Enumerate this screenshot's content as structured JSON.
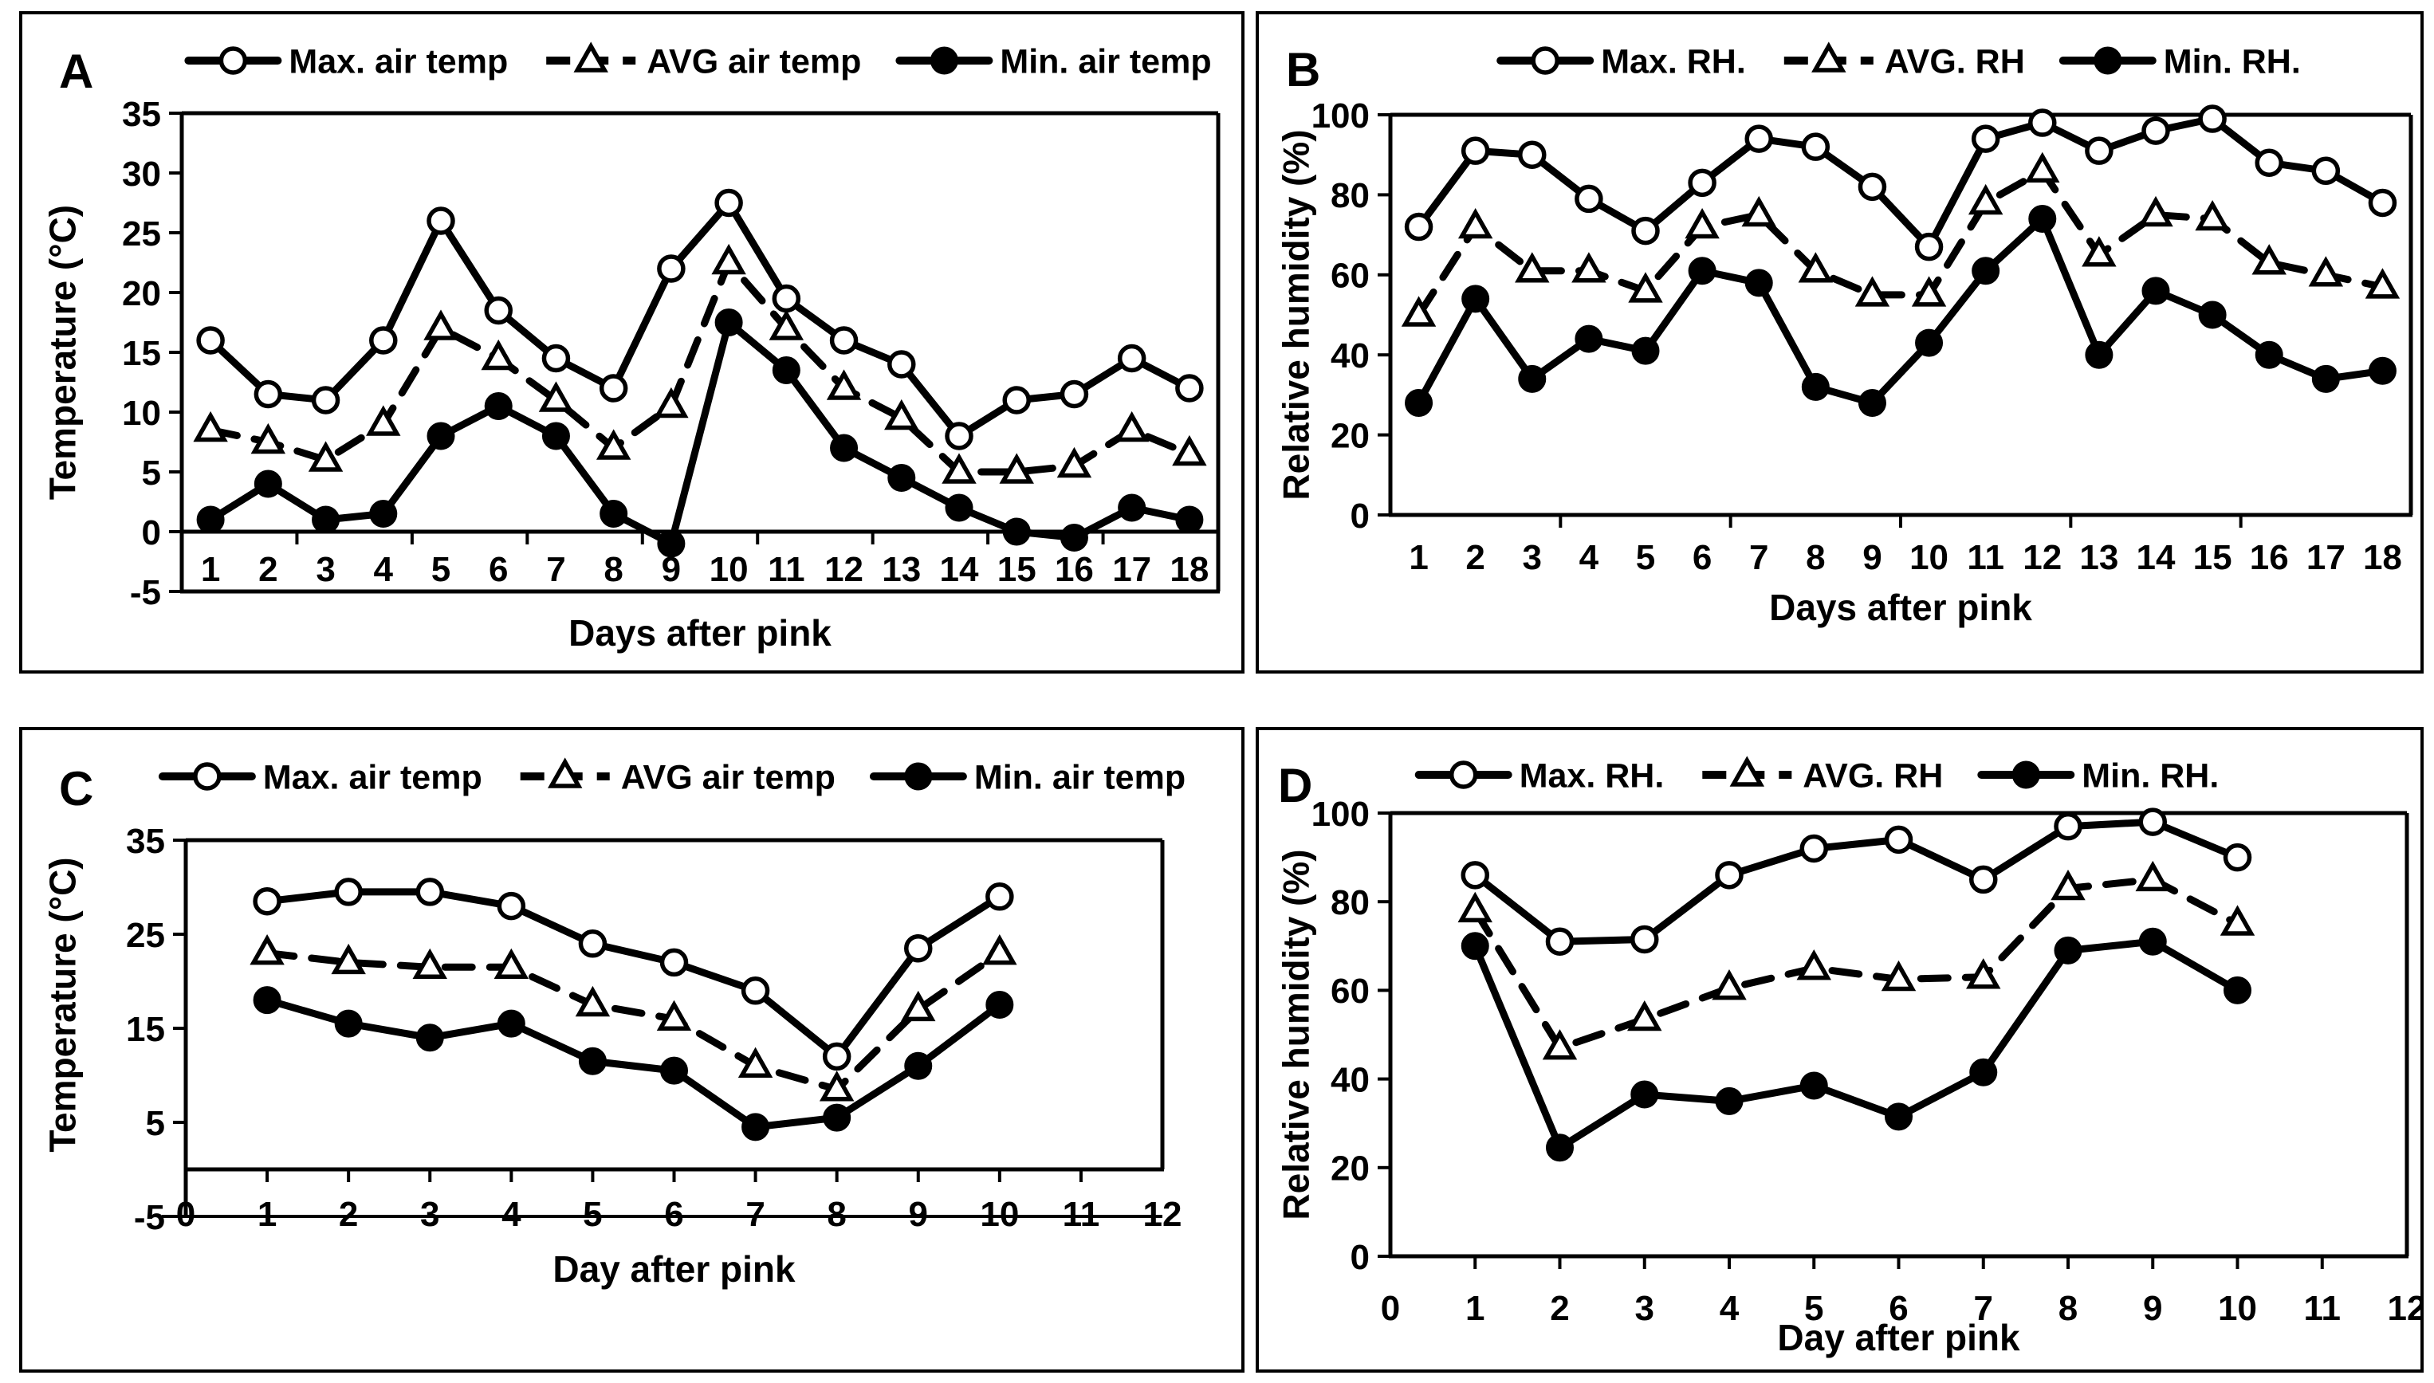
{
  "figure": {
    "background": "#ffffff",
    "ink_color": "#000000",
    "panel_labels": [
      "A",
      "B",
      "C",
      "D"
    ]
  },
  "chart_data": [
    {
      "panel_label": "A",
      "type": "line",
      "title": "",
      "xlabel": "Days after pink",
      "ylabel": "Temperature (°C)",
      "x_type": "category",
      "x": [
        1,
        2,
        3,
        4,
        5,
        6,
        7,
        8,
        9,
        10,
        11,
        12,
        13,
        14,
        15,
        16,
        17,
        18
      ],
      "xticks": [
        1,
        2,
        3,
        4,
        5,
        6,
        7,
        8,
        9,
        10,
        11,
        12,
        13,
        14,
        15,
        16,
        17,
        18
      ],
      "ylim": [
        -5,
        35
      ],
      "yticks": [
        35,
        30,
        25,
        20,
        15,
        10,
        5,
        0,
        -5
      ],
      "x_axis_cross": 0,
      "grid": false,
      "legend_position": "top",
      "series": [
        {
          "name": "Max. air temp",
          "marker": "open-circle",
          "line": "solid",
          "values": [
            16,
            11.5,
            11,
            16,
            26,
            18.5,
            14.5,
            12,
            22,
            27.5,
            19.5,
            16,
            14,
            8,
            11,
            11.5,
            14.5,
            12
          ]
        },
        {
          "name": "AVG air temp",
          "marker": "open-triangle",
          "line": "dashed",
          "values": [
            8.5,
            7.5,
            6,
            9,
            17,
            14.5,
            11,
            7,
            10.5,
            22.5,
            17,
            12,
            9.5,
            5,
            5,
            5.5,
            8.5,
            6.5
          ]
        },
        {
          "name": "Min. air temp",
          "marker": "filled-circle",
          "line": "solid",
          "values": [
            1,
            4,
            1,
            1.5,
            8,
            10.5,
            8,
            1.5,
            -1,
            17.5,
            13.5,
            7,
            4.5,
            2,
            0,
            -0.5,
            2,
            1
          ]
        }
      ]
    },
    {
      "panel_label": "B",
      "type": "line",
      "title": "",
      "xlabel": "Days after pink",
      "ylabel": "Relative humidity (%)",
      "x_type": "category",
      "x": [
        1,
        2,
        3,
        4,
        5,
        6,
        7,
        8,
        9,
        10,
        11,
        12,
        13,
        14,
        15,
        16,
        17,
        18
      ],
      "xticks": [
        1,
        2,
        3,
        4,
        5,
        6,
        7,
        8,
        9,
        10,
        11,
        12,
        13,
        14,
        15,
        16,
        17,
        18
      ],
      "ylim": [
        0,
        100
      ],
      "yticks": [
        100,
        80,
        60,
        40,
        20,
        0
      ],
      "x_axis_cross": 0,
      "grid": false,
      "legend_position": "top",
      "series": [
        {
          "name": "Max. RH.",
          "marker": "open-circle",
          "line": "solid",
          "values": [
            72,
            91,
            90,
            79,
            71,
            83,
            94,
            92,
            82,
            67,
            94,
            98,
            91,
            96,
            99,
            88,
            86,
            78
          ]
        },
        {
          "name": "AVG. RH",
          "marker": "open-triangle",
          "line": "dashed",
          "values": [
            50,
            72,
            61,
            61,
            56,
            72,
            75,
            61,
            55,
            55,
            78,
            86,
            65,
            75,
            74,
            63,
            60,
            57
          ]
        },
        {
          "name": "Min. RH.",
          "marker": "filled-circle",
          "line": "solid",
          "values": [
            28,
            54,
            34,
            44,
            41,
            61,
            58,
            32,
            28,
            43,
            61,
            74,
            40,
            56,
            50,
            40,
            34,
            36
          ]
        }
      ]
    },
    {
      "panel_label": "C",
      "type": "line",
      "title": "",
      "xlabel": "Day after pink",
      "ylabel": "Temperature (°C)",
      "x_type": "numeric",
      "x": [
        1,
        2,
        3,
        4,
        5,
        6,
        7,
        8,
        9,
        10
      ],
      "xlim": [
        0,
        12
      ],
      "xticks": [
        0,
        1,
        2,
        3,
        4,
        5,
        6,
        7,
        8,
        9,
        10,
        11,
        12
      ],
      "ylim": [
        -5,
        35
      ],
      "yticks": [
        35,
        25,
        15,
        5,
        -5
      ],
      "x_axis_cross": 0,
      "grid": false,
      "legend_position": "top",
      "series": [
        {
          "name": "Max. air temp",
          "marker": "open-circle",
          "line": "solid",
          "values": [
            28.5,
            29.5,
            29.5,
            28,
            24,
            22,
            19,
            12,
            23.5,
            29
          ]
        },
        {
          "name": "AVG air temp",
          "marker": "open-triangle",
          "line": "dashed",
          "values": [
            23,
            22,
            21.5,
            21.5,
            17.5,
            16,
            11,
            8.5,
            17,
            23
          ]
        },
        {
          "name": "Min. air temp",
          "marker": "filled-circle",
          "line": "solid",
          "values": [
            18,
            15.5,
            14,
            15.5,
            11.5,
            10.5,
            4.5,
            5.5,
            11,
            17.5
          ]
        }
      ]
    },
    {
      "panel_label": "D",
      "type": "line",
      "title": "",
      "xlabel": "Day after pink",
      "ylabel": "Relative humidity (%)",
      "x_type": "numeric",
      "x": [
        1,
        2,
        3,
        4,
        5,
        6,
        7,
        8,
        9,
        10
      ],
      "xlim": [
        0,
        12
      ],
      "xticks": [
        0,
        1,
        2,
        3,
        4,
        5,
        6,
        7,
        8,
        9,
        10,
        11,
        12
      ],
      "ylim": [
        0,
        100
      ],
      "yticks": [
        100,
        80,
        60,
        40,
        20,
        0
      ],
      "x_axis_cross": 0,
      "grid": false,
      "legend_position": "top",
      "series": [
        {
          "name": "Max. RH.",
          "marker": "open-circle",
          "line": "solid",
          "values": [
            86,
            71,
            71.5,
            86,
            92,
            94,
            85,
            97,
            98,
            90
          ]
        },
        {
          "name": "AVG. RH",
          "marker": "open-triangle",
          "line": "dashed",
          "values": [
            78,
            47,
            53.5,
            60.5,
            65,
            62.5,
            63,
            83,
            85,
            75
          ]
        },
        {
          "name": "Min. RH.",
          "marker": "filled-circle",
          "line": "solid",
          "values": [
            70,
            24.5,
            36.5,
            35,
            38.5,
            31.5,
            41.5,
            69,
            71,
            60
          ]
        }
      ]
    }
  ]
}
